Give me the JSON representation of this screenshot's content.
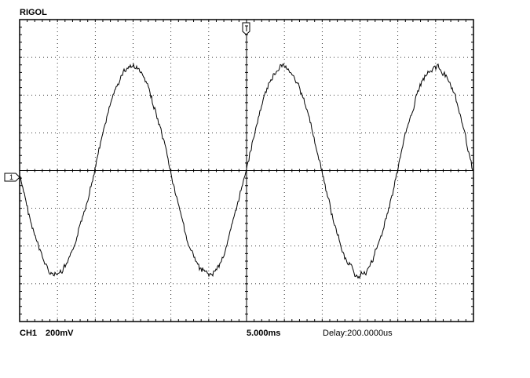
{
  "header": {
    "brand": "RIGOL"
  },
  "channel_marker": "1",
  "status": {
    "channel": "CH1",
    "scale": "200mV",
    "timebase": "5.000ms",
    "delay": "Delay:200.0000us"
  }
}
